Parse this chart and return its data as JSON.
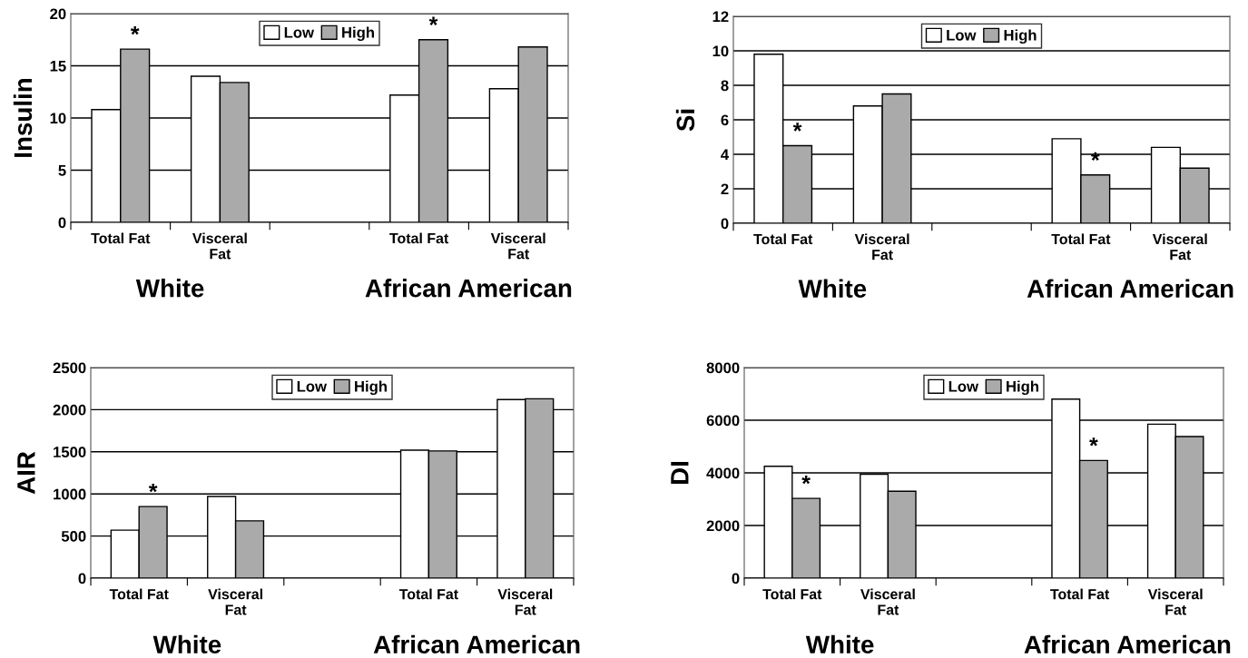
{
  "chart_data": [
    {
      "type": "bar",
      "ylabel": "Insulin",
      "categories": [
        "Total Fat",
        "Visceral\nFat",
        null,
        "Total Fat",
        "Visceral\nFat"
      ],
      "ylim": [
        0,
        20
      ],
      "yticks": [
        0,
        5,
        10,
        15,
        20
      ],
      "grid": "y",
      "legend": "top",
      "series": [
        {
          "name": "Low",
          "color": "#ffffff",
          "values": [
            10.8,
            14.0,
            null,
            12.2,
            12.8
          ]
        },
        {
          "name": "High",
          "color": "#aaaaaa",
          "values": [
            16.6,
            13.4,
            null,
            17.5,
            16.8
          ],
          "value_labels": [
            "*",
            null,
            null,
            "*",
            null
          ]
        }
      ],
      "annotations": [
        "White",
        "African American"
      ]
    },
    {
      "type": "bar",
      "ylabel": "Si",
      "categories": [
        "Total Fat",
        "Visceral\nFat",
        null,
        "Total Fat",
        "Visceral\nFat"
      ],
      "ylim": [
        0,
        12
      ],
      "yticks": [
        0,
        2,
        4,
        6,
        8,
        10,
        12
      ],
      "grid": "y",
      "legend": "top",
      "series": [
        {
          "name": "Low",
          "color": "#ffffff",
          "values": [
            9.8,
            6.8,
            null,
            4.9,
            4.4
          ]
        },
        {
          "name": "High",
          "color": "#aaaaaa",
          "values": [
            4.5,
            7.5,
            null,
            2.8,
            3.2
          ],
          "value_labels": [
            "*",
            null,
            null,
            "*",
            null
          ]
        }
      ],
      "annotations": [
        "White",
        "African American"
      ]
    },
    {
      "type": "bar",
      "ylabel": "AIR",
      "categories": [
        "Total Fat",
        "Visceral\nFat",
        null,
        "Total Fat",
        "Visceral\nFat"
      ],
      "ylim": [
        0,
        2500
      ],
      "yticks": [
        0,
        500,
        1000,
        1500,
        2000,
        2500
      ],
      "grid": "y",
      "legend": "top",
      "series": [
        {
          "name": "Low",
          "color": "#ffffff",
          "values": [
            570,
            970,
            null,
            1520,
            2120
          ]
        },
        {
          "name": "High",
          "color": "#aaaaaa",
          "values": [
            850,
            680,
            null,
            1510,
            2130
          ],
          "value_labels": [
            "*",
            null,
            null,
            null,
            null
          ]
        }
      ],
      "annotations": [
        "White",
        "African American"
      ]
    },
    {
      "type": "bar",
      "ylabel": "DI",
      "categories": [
        "Total Fat",
        "Visceral\nFat",
        null,
        "Total Fat",
        "Visceral\nFat"
      ],
      "ylim": [
        0,
        8000
      ],
      "yticks": [
        0,
        2000,
        4000,
        6000,
        8000
      ],
      "grid": "y",
      "legend": "top",
      "series": [
        {
          "name": "Low",
          "color": "#ffffff",
          "values": [
            4250,
            3950,
            null,
            6800,
            5850
          ]
        },
        {
          "name": "High",
          "color": "#aaaaaa",
          "values": [
            3030,
            3300,
            null,
            4470,
            5380
          ],
          "value_labels": [
            "*",
            null,
            null,
            "*",
            null
          ]
        }
      ],
      "annotations": [
        "White",
        "African American"
      ]
    }
  ]
}
